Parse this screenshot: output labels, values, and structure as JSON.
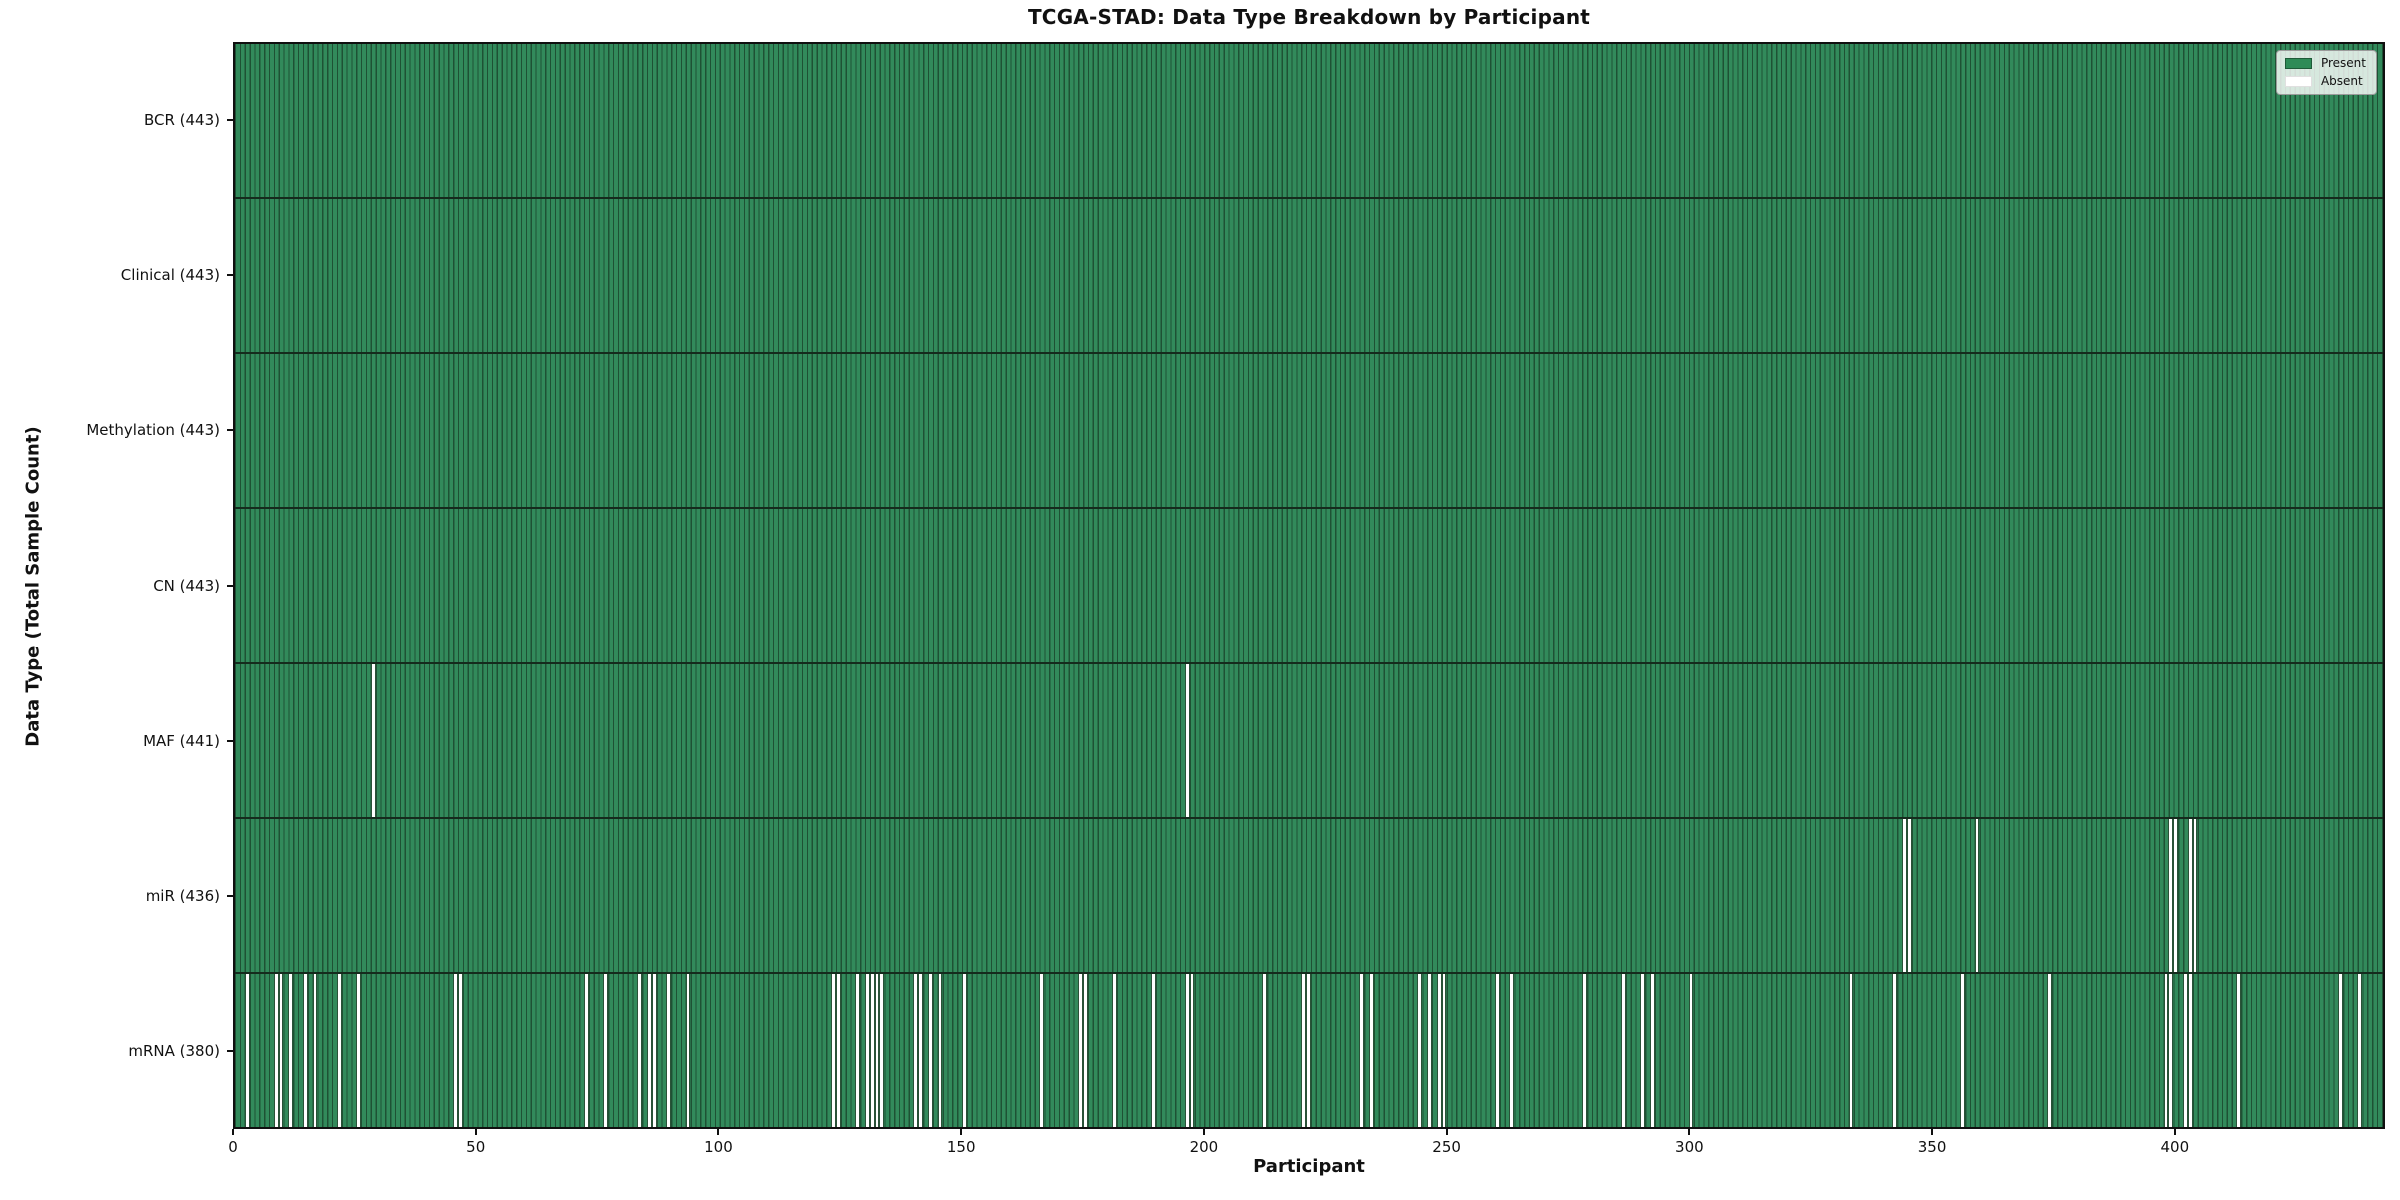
{
  "chart_data": {
    "type": "heatmap",
    "title": "TCGA-STAD: Data Type Breakdown by Participant",
    "xlabel": "Participant",
    "ylabel": "Data Type (Total Sample Count)",
    "x_ticks": [
      0,
      50,
      100,
      150,
      200,
      250,
      300,
      350,
      400
    ],
    "x_max": 443.3,
    "n_participants": 443,
    "grid": false,
    "legend_position": "upper right",
    "legend": [
      {
        "label": "Present",
        "color": "#2e8b57"
      },
      {
        "label": "Absent",
        "color": "#ffffff"
      }
    ],
    "colors": {
      "present_fill": "#2e8b57",
      "bar_edge": "#1e5134",
      "absent_fill": "#ffffff",
      "row_divider": "#152b1d",
      "spine": "#101010"
    },
    "rows": [
      {
        "name": "BCR",
        "label": "BCR (443)",
        "total": 443,
        "missing": []
      },
      {
        "name": "Clinical",
        "label": "Clinical (443)",
        "total": 443,
        "missing": []
      },
      {
        "name": "Methylation",
        "label": "Methylation (443)",
        "total": 443,
        "missing": []
      },
      {
        "name": "CN",
        "label": "CN (443)",
        "total": 443,
        "missing": []
      },
      {
        "name": "MAF",
        "label": "MAF (441)",
        "total": 441,
        "missing": [
          28,
          196
        ]
      },
      {
        "name": "miR",
        "label": "miR (436)",
        "total": 436,
        "missing": [
          344,
          345,
          359,
          399,
          400,
          403,
          404
        ]
      },
      {
        "name": "mRNA",
        "label": "mRNA (380)",
        "total": 380,
        "missing": [
          2,
          8,
          9,
          11,
          14,
          16,
          21,
          25,
          45,
          46,
          72,
          76,
          83,
          85,
          86,
          89,
          93,
          123,
          124,
          128,
          130,
          131,
          132,
          133,
          140,
          141,
          143,
          145,
          150,
          166,
          174,
          175,
          181,
          189,
          196,
          197,
          212,
          220,
          221,
          232,
          234,
          244,
          246,
          248,
          249,
          260,
          263,
          278,
          286,
          290,
          292,
          300,
          333,
          342,
          356,
          374,
          398,
          399,
          402,
          403,
          413,
          434,
          438
        ]
      }
    ]
  }
}
